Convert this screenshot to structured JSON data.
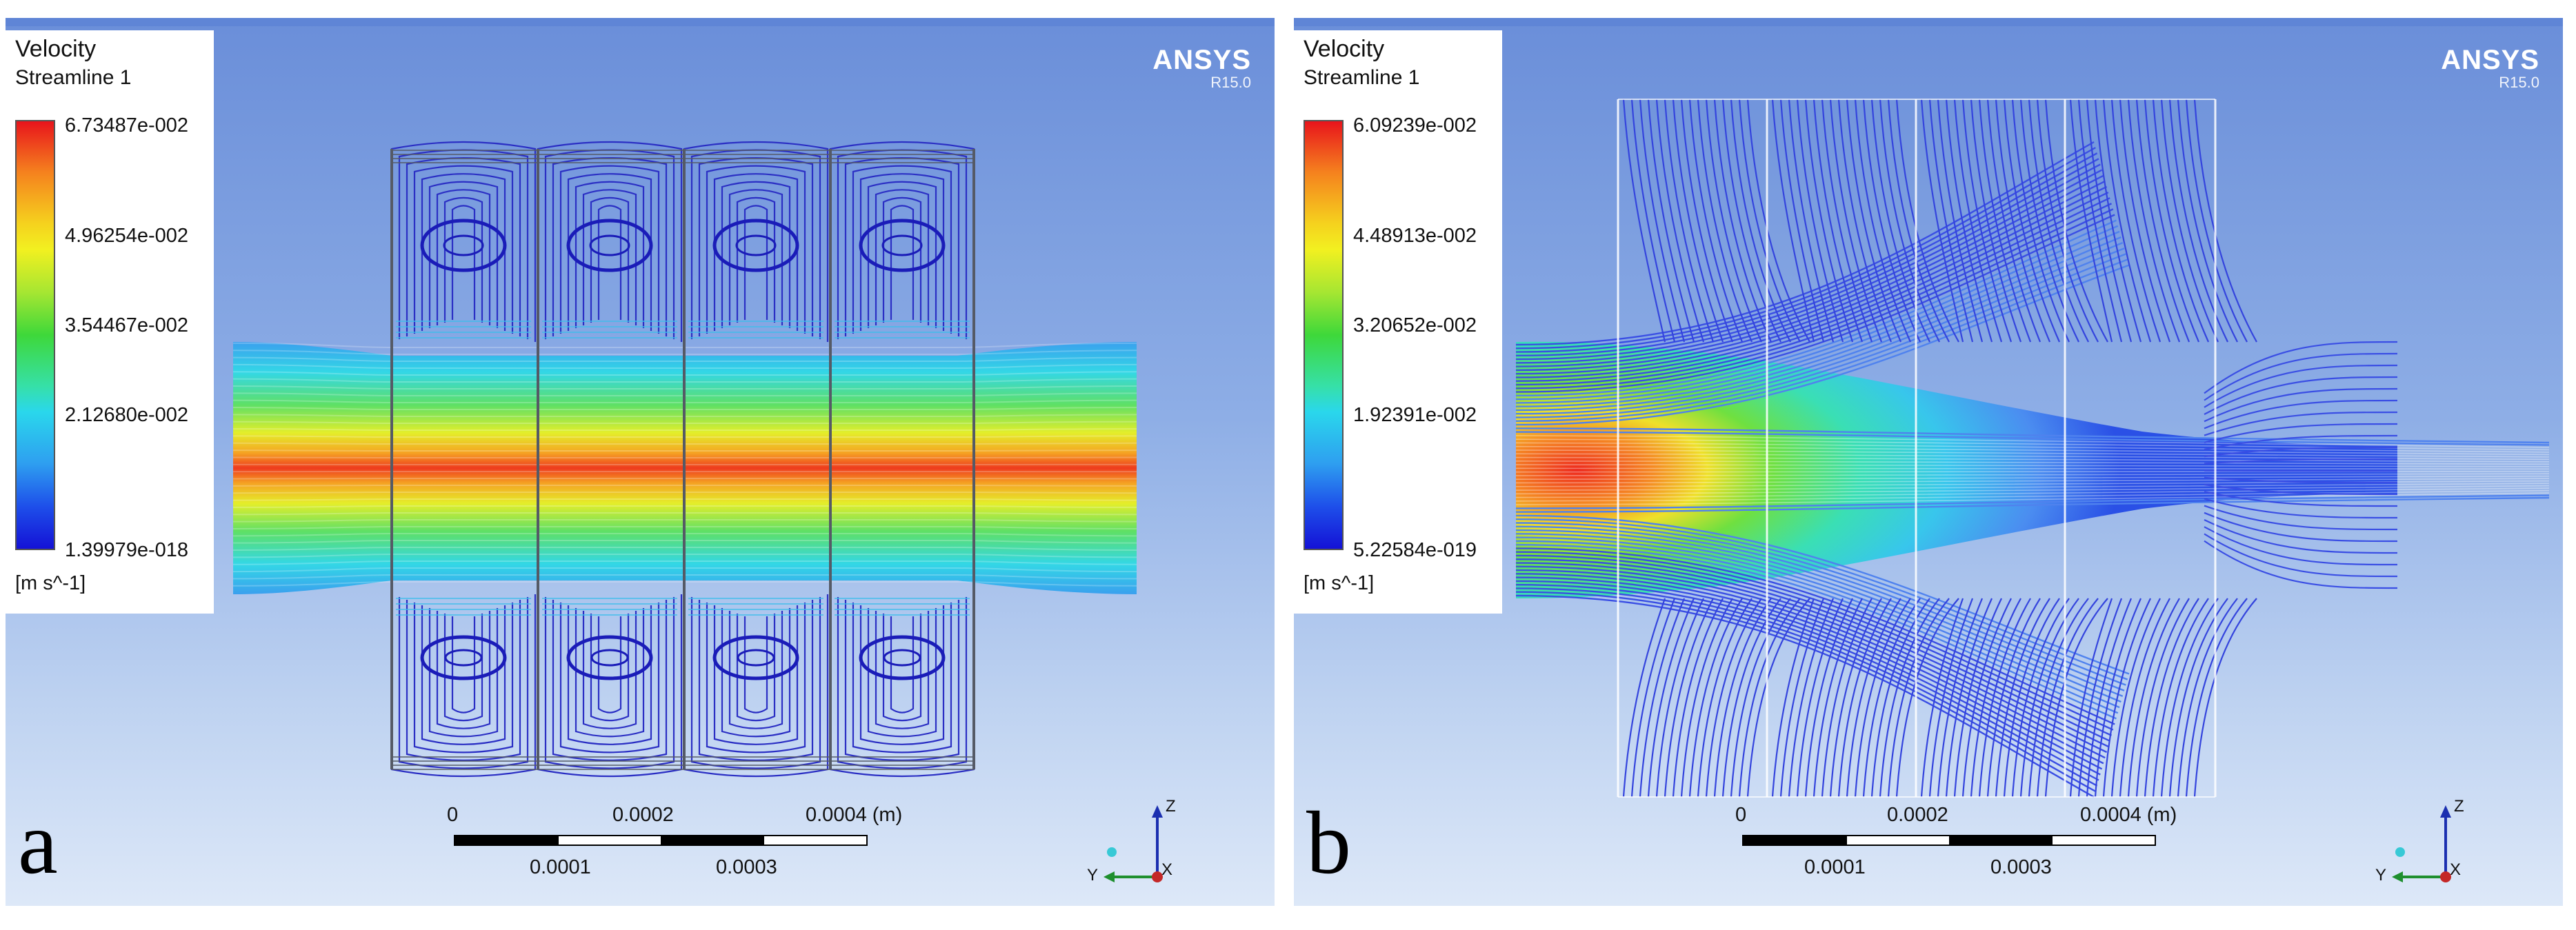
{
  "panels": [
    {
      "id": "a",
      "legend": {
        "title": "Velocity",
        "subtitle": "Streamline 1",
        "ticks": [
          "6.73487e-002",
          "4.96254e-002",
          "3.54467e-002",
          "2.12680e-002",
          "1.39979e-018"
        ],
        "unit": "[m s^-1]"
      },
      "brand": "ANSYS",
      "version": "R15.0",
      "scale": {
        "top_labels": [
          "0",
          "0.0002",
          "0.0004 (m)"
        ],
        "bottom_labels": [
          "0.0001",
          "0.0003"
        ]
      },
      "axes": {
        "z": "Z",
        "y": "Y",
        "x": "X"
      },
      "letter": "a"
    },
    {
      "id": "b",
      "legend": {
        "title": "Velocity",
        "subtitle": "Streamline 1",
        "ticks": [
          "6.09239e-002",
          "4.48913e-002",
          "3.20652e-002",
          "1.92391e-002",
          "5.22584e-019"
        ],
        "unit": "[m s^-1]"
      },
      "brand": "ANSYS",
      "version": "R15.0",
      "scale": {
        "top_labels": [
          "0",
          "0.0002",
          "0.0004 (m)"
        ],
        "bottom_labels": [
          "0.0001",
          "0.0003"
        ]
      },
      "axes": {
        "z": "Z",
        "y": "Y",
        "x": "X"
      },
      "letter": "b"
    }
  ]
}
